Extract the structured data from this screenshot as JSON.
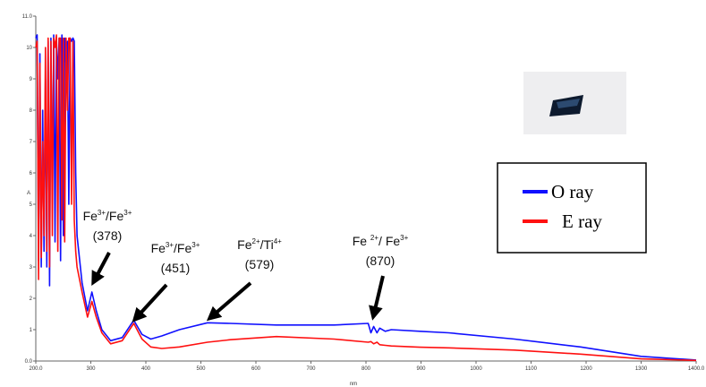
{
  "chart_data": {
    "type": "line",
    "x_label": "nm",
    "y_label": "A",
    "x": [
      200,
      202.5,
      205,
      207.5,
      210,
      212.5,
      215,
      217.5,
      220,
      222.5,
      225,
      227.5,
      230,
      232.5,
      235,
      237.5,
      240,
      242.5,
      245,
      247.5,
      250,
      252.5,
      255,
      257.5,
      260,
      262.5,
      265,
      267.5,
      270,
      272.5,
      275,
      284,
      294,
      302,
      310,
      320,
      336,
      357,
      378,
      393,
      409,
      429,
      461,
      512,
      554,
      637,
      742,
      804,
      809,
      814,
      820,
      825,
      835,
      846,
      898,
      950,
      1070,
      1190,
      1300,
      1400
    ],
    "series": [
      {
        "name": "O ray",
        "color": "#1010ff",
        "values": [
          10.3,
          10.4,
          3.2,
          9.8,
          3.0,
          8.0,
          3.5,
          9.0,
          3.0,
          10.2,
          2.4,
          10.3,
          5.0,
          10.4,
          3.8,
          10.3,
          9.0,
          10.3,
          3.2,
          10.4,
          4.0,
          10.3,
          9.5,
          10.2,
          5.0,
          10.3,
          10.2,
          10.3,
          10.2,
          6.0,
          4.0,
          2.5,
          1.6,
          2.2,
          1.6,
          1.0,
          0.65,
          0.75,
          1.3,
          0.85,
          0.7,
          0.8,
          1.0,
          1.22,
          1.2,
          1.15,
          1.15,
          1.2,
          0.9,
          1.1,
          0.9,
          1.05,
          0.95,
          1.0,
          0.95,
          0.9,
          0.7,
          0.45,
          0.15,
          0.03
        ]
      },
      {
        "name": "E ray",
        "color": "#ff1010",
        "values": [
          10.0,
          10.2,
          2.6,
          9.5,
          3.3,
          7.0,
          4.0,
          10.0,
          3.5,
          10.3,
          3.0,
          10.2,
          4.0,
          10.3,
          10.0,
          10.4,
          3.5,
          10.3,
          10.3,
          4.5,
          10.3,
          3.8,
          10.3,
          8.0,
          10.3,
          10.3,
          5.0,
          10.2,
          4.5,
          3.5,
          3.0,
          2.2,
          1.4,
          1.9,
          1.4,
          0.9,
          0.55,
          0.65,
          1.2,
          0.7,
          0.45,
          0.4,
          0.45,
          0.6,
          0.68,
          0.78,
          0.7,
          0.6,
          0.62,
          0.55,
          0.6,
          0.52,
          0.5,
          0.48,
          0.44,
          0.42,
          0.35,
          0.22,
          0.07,
          0.02
        ]
      }
    ],
    "xlim": [
      200,
      1400
    ],
    "xticks": [
      {
        "value": 200,
        "label": "200.0"
      },
      300,
      400,
      500,
      600,
      700,
      800,
      900,
      1000,
      1100,
      1200,
      1300,
      {
        "value": 1400,
        "label": "1400.0"
      }
    ],
    "ylim": [
      0,
      11
    ],
    "yticks": [
      {
        "value": 0,
        "label": "0.0"
      },
      1,
      2,
      3,
      4,
      5,
      6,
      7,
      8,
      9,
      10,
      {
        "value": 11,
        "label": "11.0"
      }
    ],
    "legend_position": "right",
    "annotations": [
      {
        "label_parts": [
          "Fe",
          "3+",
          "/Fe",
          "3+"
        ],
        "note": "(378)"
      },
      {
        "label_parts": [
          "Fe",
          "3+",
          "/Fe",
          "3+"
        ],
        "note": "(451)"
      },
      {
        "label_parts": [
          "Fe",
          "2+",
          "/Ti",
          "4+"
        ],
        "note": "(579)"
      },
      {
        "label_parts": [
          "Fe ",
          "2+",
          "/ Fe",
          "3+"
        ],
        "note": "(870)"
      }
    ]
  }
}
